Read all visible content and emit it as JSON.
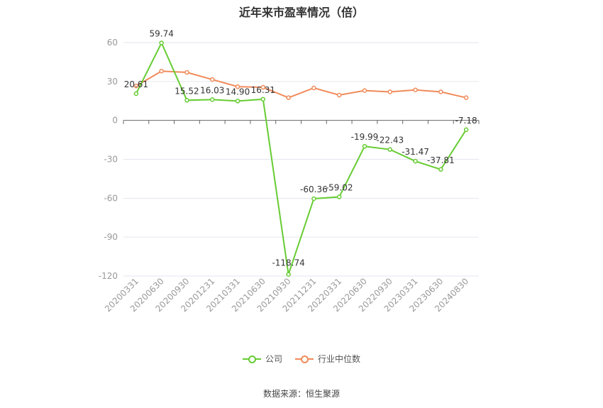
{
  "chart_data": {
    "type": "line",
    "title": "近年来市盈率情况（倍）",
    "categories": [
      "20200331",
      "20200630",
      "20200930",
      "20201231",
      "20210331",
      "20210630",
      "20210930",
      "20211231",
      "20220331",
      "20220630",
      "20220930",
      "20230331",
      "20230630",
      "20240830"
    ],
    "series": [
      {
        "name": "公司",
        "color": "#66cc33",
        "values": [
          20.61,
          59.74,
          15.52,
          16.03,
          14.9,
          16.31,
          -118.74,
          -60.36,
          -59.02,
          -19.99,
          -22.43,
          -31.47,
          -37.81,
          -7.18
        ],
        "labels": [
          "20.61",
          "59.74",
          "15.52",
          "16.03",
          "14.90",
          "16.31",
          "-118.74",
          "-60.36",
          "-59.02",
          "-19.99",
          "-22.43",
          "-31.47",
          "-37.81",
          "-7.18"
        ]
      },
      {
        "name": "行业中位数",
        "color": "#f08b5a",
        "values": [
          26.5,
          38.0,
          37.0,
          31.5,
          26.0,
          25.5,
          17.5,
          25.0,
          19.5,
          23.0,
          22.0,
          23.5,
          22.0,
          17.5
        ]
      }
    ],
    "ylim": [
      -120,
      60
    ],
    "yticks": [
      60,
      30,
      0,
      -30,
      -60,
      -90,
      -120
    ],
    "grid": true,
    "legend_position": "bottom"
  },
  "source": "数据来源：恒生聚源"
}
